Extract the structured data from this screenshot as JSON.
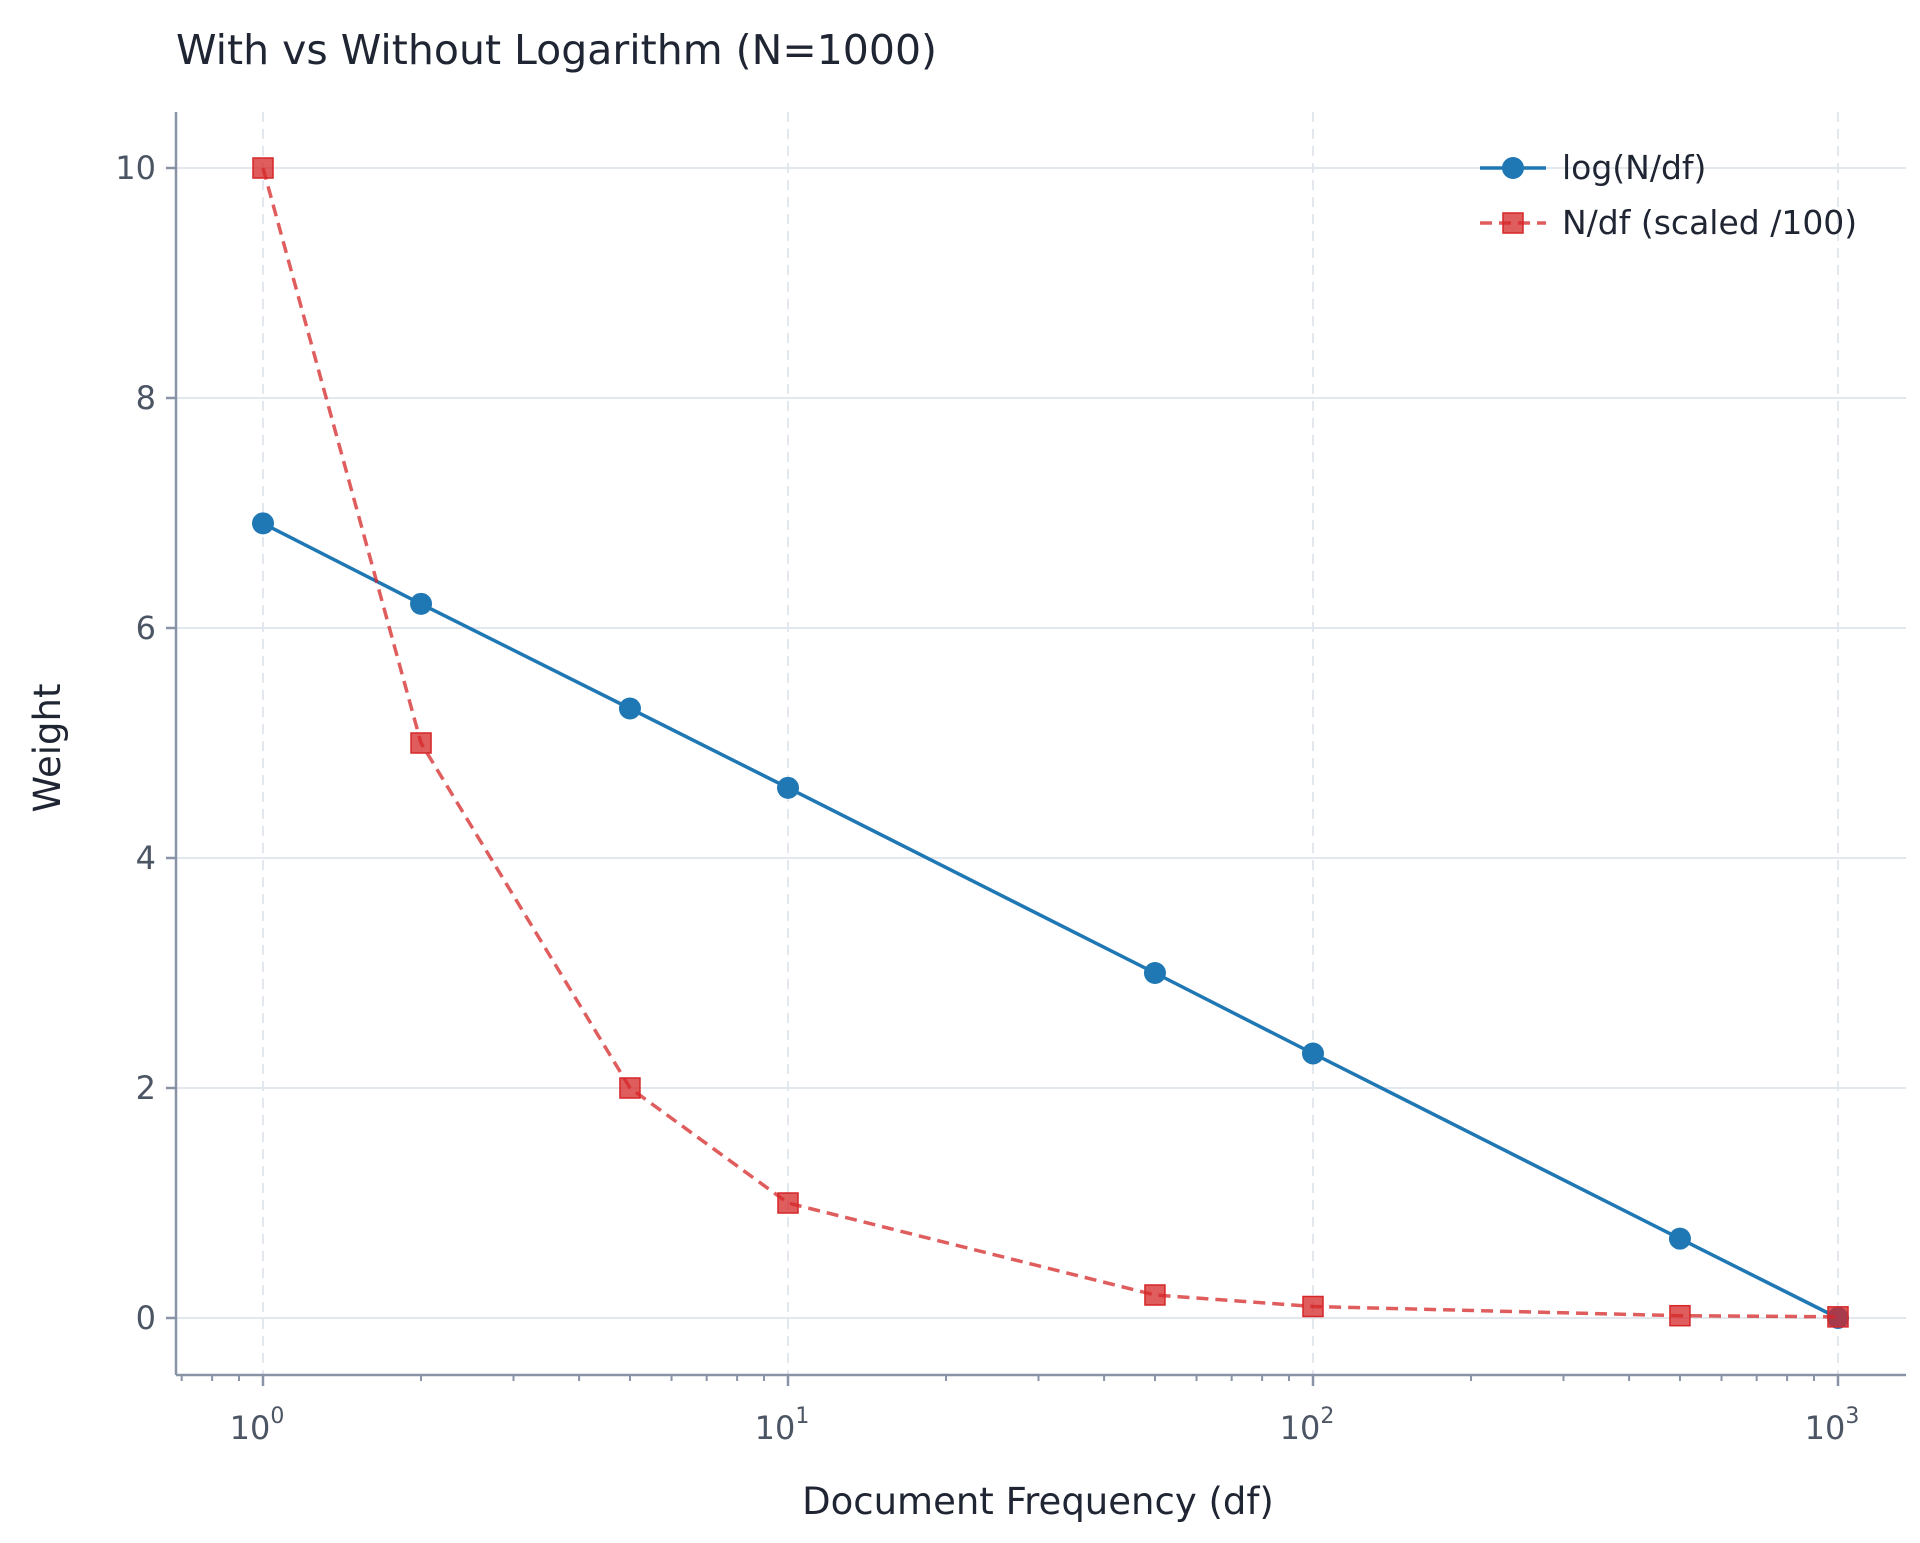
{
  "chart_data": {
    "type": "line",
    "title": "With vs Without Logarithm (N=1000)",
    "xlabel": "Document Frequency (df)",
    "ylabel": "Weight",
    "x_scale": "log",
    "xlim": [
      0.7,
      1400
    ],
    "ylim": [
      -0.5,
      10.5
    ],
    "x_ticks": [
      1,
      10,
      100,
      1000
    ],
    "x_tick_labels": [
      {
        "base": "10",
        "exp": "0"
      },
      {
        "base": "10",
        "exp": "1"
      },
      {
        "base": "10",
        "exp": "2"
      },
      {
        "base": "10",
        "exp": "3"
      }
    ],
    "y_ticks": [
      0,
      2,
      4,
      6,
      8,
      10
    ],
    "y_tick_labels": [
      "0",
      "2",
      "4",
      "6",
      "8",
      "10"
    ],
    "grid": true,
    "legend_position": "top-right",
    "series": [
      {
        "name": "log(N/df)",
        "color": "#1f77b4",
        "line_style": "solid",
        "marker": "circle",
        "x": [
          1,
          2,
          5,
          10,
          50,
          100,
          500,
          1000
        ],
        "y": [
          6.91,
          6.21,
          5.3,
          4.61,
          3.0,
          2.3,
          0.69,
          0.0
        ]
      },
      {
        "name": "N/df (scaled /100)",
        "color": "#d62728",
        "line_style": "dashed",
        "marker": "square",
        "x": [
          1,
          2,
          5,
          10,
          50,
          100,
          500,
          1000
        ],
        "y": [
          10.0,
          5.0,
          2.0,
          1.0,
          0.2,
          0.1,
          0.02,
          0.01
        ]
      }
    ]
  }
}
